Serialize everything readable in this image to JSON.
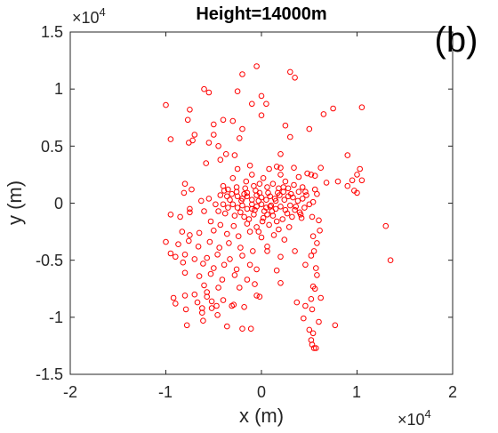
{
  "chart_data": {
    "type": "scatter",
    "title": "Height=14000m",
    "panel_label": "(b)",
    "xlabel": "x (m)",
    "ylabel": "y (m)",
    "xlim": [
      -20000,
      20000
    ],
    "ylim": [
      -15000,
      15000
    ],
    "x_ticks": [
      -20000,
      -10000,
      0,
      10000,
      20000
    ],
    "x_tick_labels": [
      "-2",
      "-1",
      "0",
      "1",
      "2"
    ],
    "y_ticks": [
      -15000,
      -10000,
      -5000,
      0,
      5000,
      10000,
      15000
    ],
    "y_tick_labels": [
      "-1.5",
      "-1",
      "-0.5",
      "0",
      "0.5",
      "1",
      "1.5"
    ],
    "x_multiplier": "×10",
    "x_multiplier_exp": "4",
    "y_multiplier": "×10",
    "y_multiplier_exp": "4",
    "marker": "open-circle",
    "color": "#ff0000",
    "grid": false,
    "points": [
      [
        -500,
        12000
      ],
      [
        3000,
        11500
      ],
      [
        3500,
        11000
      ],
      [
        -2000,
        11300
      ],
      [
        -2500,
        9800
      ],
      [
        -6000,
        10000
      ],
      [
        -5500,
        9700
      ],
      [
        0,
        9400
      ],
      [
        -1000,
        8700
      ],
      [
        500,
        8700
      ],
      [
        -10000,
        8600
      ],
      [
        10500,
        8400
      ],
      [
        7500,
        8300
      ],
      [
        6500,
        7800
      ],
      [
        -7500,
        8200
      ],
      [
        0,
        7700
      ],
      [
        -7700,
        7300
      ],
      [
        -3000,
        7200
      ],
      [
        -5000,
        6900
      ],
      [
        -4000,
        7300
      ],
      [
        -2000,
        6500
      ],
      [
        -7000,
        6000
      ],
      [
        -5000,
        6000
      ],
      [
        2500,
        6800
      ],
      [
        5000,
        6500
      ],
      [
        3000,
        5800
      ],
      [
        -9500,
        5600
      ],
      [
        -7200,
        5500
      ],
      [
        -7600,
        5300
      ],
      [
        -5500,
        5300
      ],
      [
        -4500,
        5000
      ],
      [
        -2300,
        5700
      ],
      [
        -3700,
        4300
      ],
      [
        -2800,
        4200
      ],
      [
        2000,
        4300
      ],
      [
        -4300,
        3800
      ],
      [
        9000,
        4200
      ],
      [
        10300,
        3000
      ],
      [
        10000,
        2500
      ],
      [
        -5800,
        3500
      ],
      [
        -1200,
        3300
      ],
      [
        1600,
        3200
      ],
      [
        3400,
        3100
      ],
      [
        2000,
        3100
      ],
      [
        800,
        3000
      ],
      [
        -2500,
        3000
      ],
      [
        6200,
        3100
      ],
      [
        4800,
        2600
      ],
      [
        5200,
        2500
      ],
      [
        5600,
        2400
      ],
      [
        3900,
        2300
      ],
      [
        2000,
        2500
      ],
      [
        -1000,
        2500
      ],
      [
        -3000,
        2200
      ],
      [
        10500,
        2000
      ],
      [
        9500,
        2000
      ],
      [
        8000,
        1900
      ],
      [
        6800,
        1800
      ],
      [
        9000,
        1500
      ],
      [
        -8000,
        1700
      ],
      [
        -4000,
        1500
      ],
      [
        -3500,
        1200
      ],
      [
        -2600,
        1400
      ],
      [
        -1700,
        1300
      ],
      [
        -1500,
        900
      ],
      [
        -800,
        1500
      ],
      [
        -200,
        1700
      ],
      [
        600,
        1400
      ],
      [
        1200,
        1700
      ],
      [
        1800,
        1300
      ],
      [
        2300,
        1400
      ],
      [
        2800,
        1300
      ],
      [
        3400,
        1600
      ],
      [
        3900,
        1000
      ],
      [
        4300,
        1400
      ],
      [
        5600,
        1200
      ],
      [
        4700,
        700
      ],
      [
        5800,
        800
      ],
      [
        9700,
        1100
      ],
      [
        10000,
        900
      ],
      [
        -7300,
        1200
      ],
      [
        -4300,
        700
      ],
      [
        -3600,
        600
      ],
      [
        -3100,
        800
      ],
      [
        -2500,
        600
      ],
      [
        -2000,
        400
      ],
      [
        -1500,
        600
      ],
      [
        -1000,
        300
      ],
      [
        -500,
        700
      ],
      [
        0,
        500
      ],
      [
        500,
        300
      ],
      [
        900,
        600
      ],
      [
        1400,
        400
      ],
      [
        1900,
        700
      ],
      [
        2400,
        300
      ],
      [
        2800,
        600
      ],
      [
        3300,
        500
      ],
      [
        3800,
        200
      ],
      [
        4300,
        400
      ],
      [
        5000,
        -100
      ],
      [
        5400,
        100
      ],
      [
        -5500,
        400
      ],
      [
        -6300,
        200
      ],
      [
        -8100,
        900
      ],
      [
        -4800,
        -100
      ],
      [
        -4000,
        -100
      ],
      [
        -3500,
        -400
      ],
      [
        -3000,
        -100
      ],
      [
        -2500,
        -400
      ],
      [
        -2000,
        -200
      ],
      [
        -1500,
        -500
      ],
      [
        -1000,
        -100
      ],
      [
        -500,
        -300
      ],
      [
        0,
        -100
      ],
      [
        500,
        -400
      ],
      [
        1000,
        -200
      ],
      [
        1500,
        -500
      ],
      [
        2000,
        -300
      ],
      [
        2500,
        -600
      ],
      [
        3000,
        -200
      ],
      [
        3500,
        -600
      ],
      [
        4000,
        -800
      ],
      [
        4500,
        -400
      ],
      [
        -6000,
        -700
      ],
      [
        -7500,
        -500
      ],
      [
        -9500,
        -1000
      ],
      [
        -8500,
        -1200
      ],
      [
        -7500,
        -800
      ],
      [
        -3800,
        -900
      ],
      [
        -2800,
        -1100
      ],
      [
        -1800,
        -1200
      ],
      [
        -800,
        -1000
      ],
      [
        200,
        -1300
      ],
      [
        1200,
        -1100
      ],
      [
        2200,
        -1400
      ],
      [
        3200,
        -1200
      ],
      [
        4200,
        -1300
      ],
      [
        5300,
        -1200
      ],
      [
        6000,
        -1500
      ],
      [
        -5300,
        -1600
      ],
      [
        -4300,
        -1900
      ],
      [
        -2900,
        -2000
      ],
      [
        -1500,
        -1800
      ],
      [
        -500,
        -2100
      ],
      [
        800,
        -1900
      ],
      [
        1800,
        -2300
      ],
      [
        2900,
        -2100
      ],
      [
        -8300,
        -2500
      ],
      [
        -7500,
        -2800
      ],
      [
        -6500,
        -2600
      ],
      [
        -5000,
        -2400
      ],
      [
        -3600,
        -2700
      ],
      [
        -2400,
        -2900
      ],
      [
        -1200,
        -2500
      ],
      [
        0,
        -3000
      ],
      [
        1300,
        -2800
      ],
      [
        2400,
        -3200
      ],
      [
        5400,
        -2900
      ],
      [
        -10000,
        -3400
      ],
      [
        -8700,
        -3600
      ],
      [
        -7600,
        -3300
      ],
      [
        -6600,
        -3800
      ],
      [
        -5400,
        -3400
      ],
      [
        -4400,
        -3900
      ],
      [
        -3400,
        -3500
      ],
      [
        -2200,
        -3900
      ],
      [
        -900,
        -4200
      ],
      [
        600,
        -3800
      ],
      [
        5800,
        -3500
      ],
      [
        13000,
        -2000
      ],
      [
        6100,
        -2400
      ],
      [
        -9500,
        -4400
      ],
      [
        -8000,
        -4500
      ],
      [
        -7000,
        -4900
      ],
      [
        -5700,
        -4800
      ],
      [
        -4600,
        -4500
      ],
      [
        -3300,
        -4900
      ],
      [
        -2000,
        -4600
      ],
      [
        600,
        -4200
      ],
      [
        2000,
        -4700
      ],
      [
        3500,
        -4200
      ],
      [
        5200,
        -4600
      ],
      [
        13500,
        -5000
      ],
      [
        5500,
        -4200
      ],
      [
        -9000,
        -4700
      ],
      [
        -8200,
        -5200
      ],
      [
        -6100,
        -5300
      ],
      [
        -5000,
        -5700
      ],
      [
        -3900,
        -5400
      ],
      [
        -2600,
        -5800
      ],
      [
        -1200,
        -5400
      ],
      [
        -500,
        -5800
      ],
      [
        1600,
        -5900
      ],
      [
        4600,
        -5400
      ],
      [
        5700,
        -5700
      ],
      [
        -8000,
        -6100
      ],
      [
        -6500,
        -6400
      ],
      [
        -5300,
        -6200
      ],
      [
        -4100,
        -6700
      ],
      [
        -2800,
        -6300
      ],
      [
        -1500,
        -6700
      ],
      [
        5800,
        -6300
      ],
      [
        -6000,
        -7200
      ],
      [
        -4500,
        -7400
      ],
      [
        -5700,
        -7800
      ],
      [
        -2300,
        -7400
      ],
      [
        -700,
        -7100
      ],
      [
        5400,
        -7300
      ],
      [
        2000,
        -7000
      ],
      [
        -9200,
        -8300
      ],
      [
        -8000,
        -8100
      ],
      [
        -7000,
        -8000
      ],
      [
        -5700,
        -8200
      ],
      [
        -5200,
        -8600
      ],
      [
        -4700,
        -9000
      ],
      [
        -6700,
        -8700
      ],
      [
        -3100,
        -9000
      ],
      [
        -1800,
        -9100
      ],
      [
        -500,
        -8100
      ],
      [
        -200,
        -8200
      ],
      [
        3700,
        -8700
      ],
      [
        5200,
        -8400
      ],
      [
        -9000,
        -8800
      ],
      [
        -7900,
        -9300
      ],
      [
        -6200,
        -9600
      ],
      [
        -4600,
        -9800
      ],
      [
        -2900,
        -8900
      ],
      [
        5300,
        -9300
      ],
      [
        4600,
        -9000
      ],
      [
        -7800,
        -10700
      ],
      [
        -6100,
        -10300
      ],
      [
        -3600,
        -10800
      ],
      [
        -2000,
        -11000
      ],
      [
        -1100,
        -11000
      ],
      [
        4400,
        -10100
      ],
      [
        6000,
        -10400
      ],
      [
        5000,
        -11100
      ],
      [
        5400,
        -11400
      ],
      [
        5200,
        -12000
      ],
      [
        5300,
        -12400
      ],
      [
        5500,
        -12700
      ],
      [
        5700,
        -12700
      ],
      [
        7700,
        -10700
      ],
      [
        -6200,
        -9200
      ],
      [
        -5200,
        -9200
      ],
      [
        -4000,
        -8500
      ],
      [
        5600,
        -7500
      ],
      [
        6200,
        -8300
      ],
      [
        -1000,
        -500
      ],
      [
        -300,
        200
      ],
      [
        300,
        -700
      ],
      [
        700,
        900
      ],
      [
        -600,
        1100
      ],
      [
        1100,
        -700
      ],
      [
        1700,
        900
      ],
      [
        -1300,
        -1400
      ],
      [
        2300,
        1000
      ],
      [
        -1800,
        800
      ],
      [
        100,
        -1600
      ],
      [
        1500,
        200
      ],
      [
        -2200,
        -800
      ],
      [
        2700,
        -900
      ],
      [
        -2600,
        1000
      ],
      [
        3100,
        800
      ],
      [
        200,
        2200
      ],
      [
        -300,
        -2500
      ],
      [
        1600,
        -1600
      ],
      [
        -1600,
        1900
      ],
      [
        2500,
        1900
      ],
      [
        -700,
        -600
      ],
      [
        900,
        -300
      ],
      [
        -2100,
        200
      ],
      [
        3600,
        -300
      ],
      [
        -3300,
        300
      ],
      [
        4100,
        -1000
      ],
      [
        -3900,
        1100
      ],
      [
        4600,
        1000
      ],
      [
        -4500,
        -700
      ],
      [
        -200,
        900
      ],
      [
        600,
        -1000
      ]
    ]
  }
}
